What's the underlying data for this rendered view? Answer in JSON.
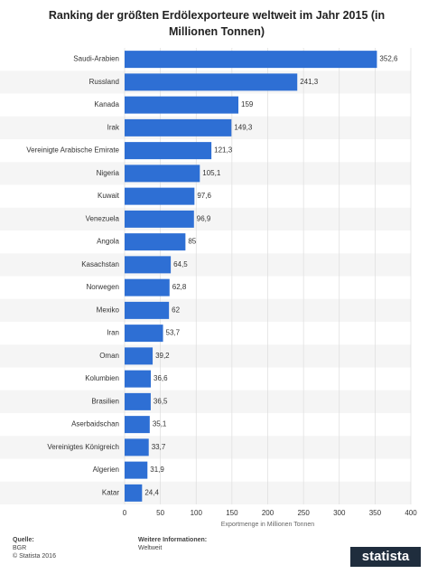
{
  "chart_data": {
    "type": "bar",
    "orientation": "horizontal",
    "title": "Ranking der größten Erdölexporteure weltweit im Jahr 2015 (in Millionen Tonnen)",
    "categories": [
      "Saudi-Arabien",
      "Russland",
      "Kanada",
      "Irak",
      "Vereinigte Arabische Emirate",
      "Nigeria",
      "Kuwait",
      "Venezuela",
      "Angola",
      "Kasachstan",
      "Norwegen",
      "Mexiko",
      "Iran",
      "Oman",
      "Kolumbien",
      "Brasilien",
      "Aserbaidschan",
      "Vereinigtes Königreich",
      "Algerien",
      "Katar"
    ],
    "values": [
      352.6,
      241.3,
      159,
      149.3,
      121.3,
      105.1,
      97.6,
      96.9,
      85,
      64.5,
      62.8,
      62,
      53.7,
      39.2,
      36.6,
      36.5,
      35.1,
      33.7,
      31.9,
      24.4
    ],
    "value_labels": [
      "352,6",
      "241,3",
      "159",
      "149,3",
      "121,3",
      "105,1",
      "97,6",
      "96,9",
      "85",
      "64,5",
      "62,8",
      "62",
      "53,7",
      "39,2",
      "36,6",
      "36,5",
      "35,1",
      "33,7",
      "31,9",
      "24,4"
    ],
    "color": "#2e6fd4",
    "xlabel": "Exportmenge in Millionen Tonnen",
    "xlim": [
      0,
      400
    ],
    "xticks": [
      0,
      50,
      100,
      150,
      200,
      250,
      300,
      350,
      400
    ],
    "grid": true
  },
  "footer": {
    "source_label": "Quelle:",
    "source": "BGR",
    "copyright": "© Statista 2016",
    "info_label": "Weitere Informationen:",
    "info": "Weltweit",
    "logo": "statista"
  }
}
